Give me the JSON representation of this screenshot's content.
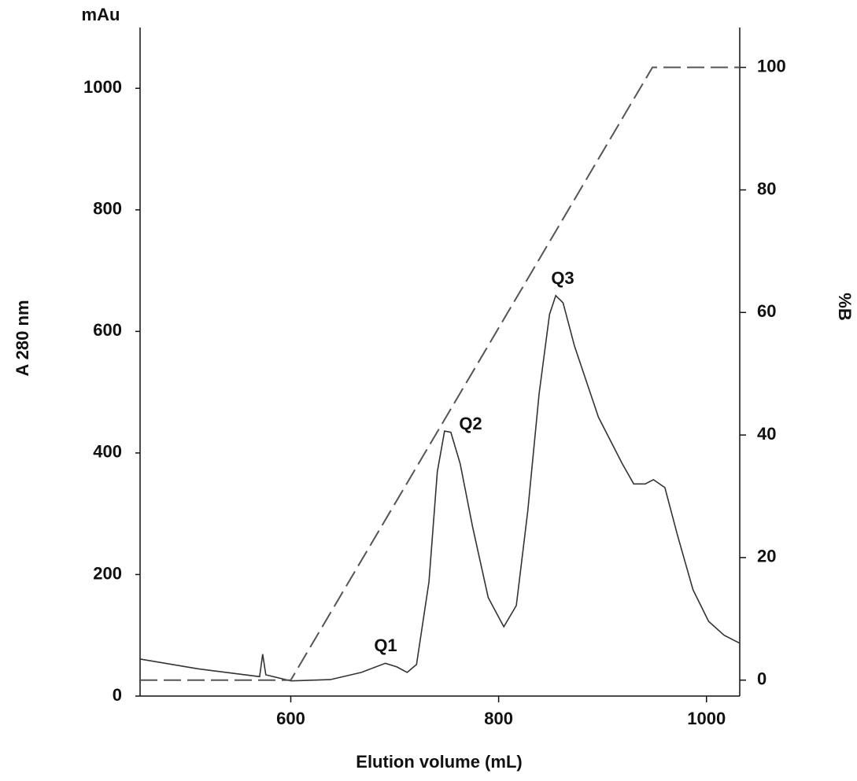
{
  "chart_data": {
    "type": "line",
    "y_unit_label": "mAu",
    "ylabel": "A 280 nm",
    "y2label": "%B",
    "xlabel": "Elution volume (mL)",
    "xlim": [
      455,
      1032
    ],
    "xticks": [
      600,
      800,
      1000
    ],
    "ylim": [
      0,
      1100
    ],
    "yticks": [
      0,
      200,
      400,
      600,
      800,
      1000
    ],
    "y2lim": [
      -2.6,
      106.5
    ],
    "y2ticks": [
      0,
      20,
      40,
      60,
      80,
      100
    ],
    "annotations": [
      "Q1",
      "Q2",
      "Q3"
    ],
    "series": [
      {
        "color": "#333333",
        "dashed": false,
        "x": [
          455,
          510,
          570,
          573,
          576,
          600,
          638,
          668,
          691,
          702,
          712,
          721,
          733,
          741,
          748,
          754,
          763,
          775,
          790,
          805,
          817,
          828,
          839,
          849,
          855,
          862,
          873,
          896,
          919,
          930,
          941,
          949,
          960,
          972,
          987,
          1002,
          1017,
          1032
        ],
        "values": [
          61,
          45,
          32,
          69,
          35,
          25,
          27,
          39,
          54,
          48,
          39,
          52,
          188,
          369,
          436,
          434,
          382,
          278,
          162,
          114,
          149,
          304,
          498,
          628,
          659,
          647,
          576,
          459,
          382,
          349,
          349,
          356,
          343,
          265,
          175,
          123,
          100,
          87
        ]
      },
      {
        "color": "#555555",
        "dashed": true,
        "axis": "y2",
        "x": [
          455,
          600,
          948,
          1032
        ],
        "values": [
          0,
          0,
          100,
          100
        ]
      }
    ]
  }
}
